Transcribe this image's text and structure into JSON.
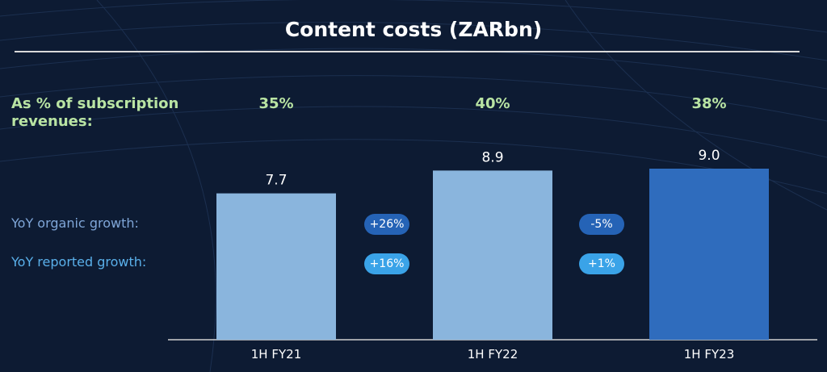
{
  "title": "Content costs (ZARbn)",
  "subscription_pct": {
    "label": "As % of subscription revenues:",
    "values": [
      "35%",
      "40%",
      "38%"
    ]
  },
  "growth": {
    "organic_label": "YoY organic growth:",
    "reported_label": "YoY reported growth:",
    "organic": [
      "+26%",
      "-5%"
    ],
    "reported": [
      "+16%",
      "+1%"
    ]
  },
  "colors": {
    "background": "#0d1b33",
    "bar_light": "#8ab5dd",
    "bar_dark": "#2f6cbd",
    "accent_green": "#b9e4a3",
    "organic_pill": "#2563b6",
    "reported_pill": "#3aa3e8"
  },
  "chart_data": {
    "type": "bar",
    "title": "Content costs (ZARbn)",
    "categories": [
      "1H FY21",
      "1H FY22",
      "1H FY23"
    ],
    "values": [
      7.7,
      8.9,
      9.0
    ],
    "value_labels": [
      "7.7",
      "8.9",
      "9.0"
    ],
    "xlabel": "",
    "ylabel": "",
    "ylim": [
      0,
      9.0
    ],
    "grid": false
  }
}
